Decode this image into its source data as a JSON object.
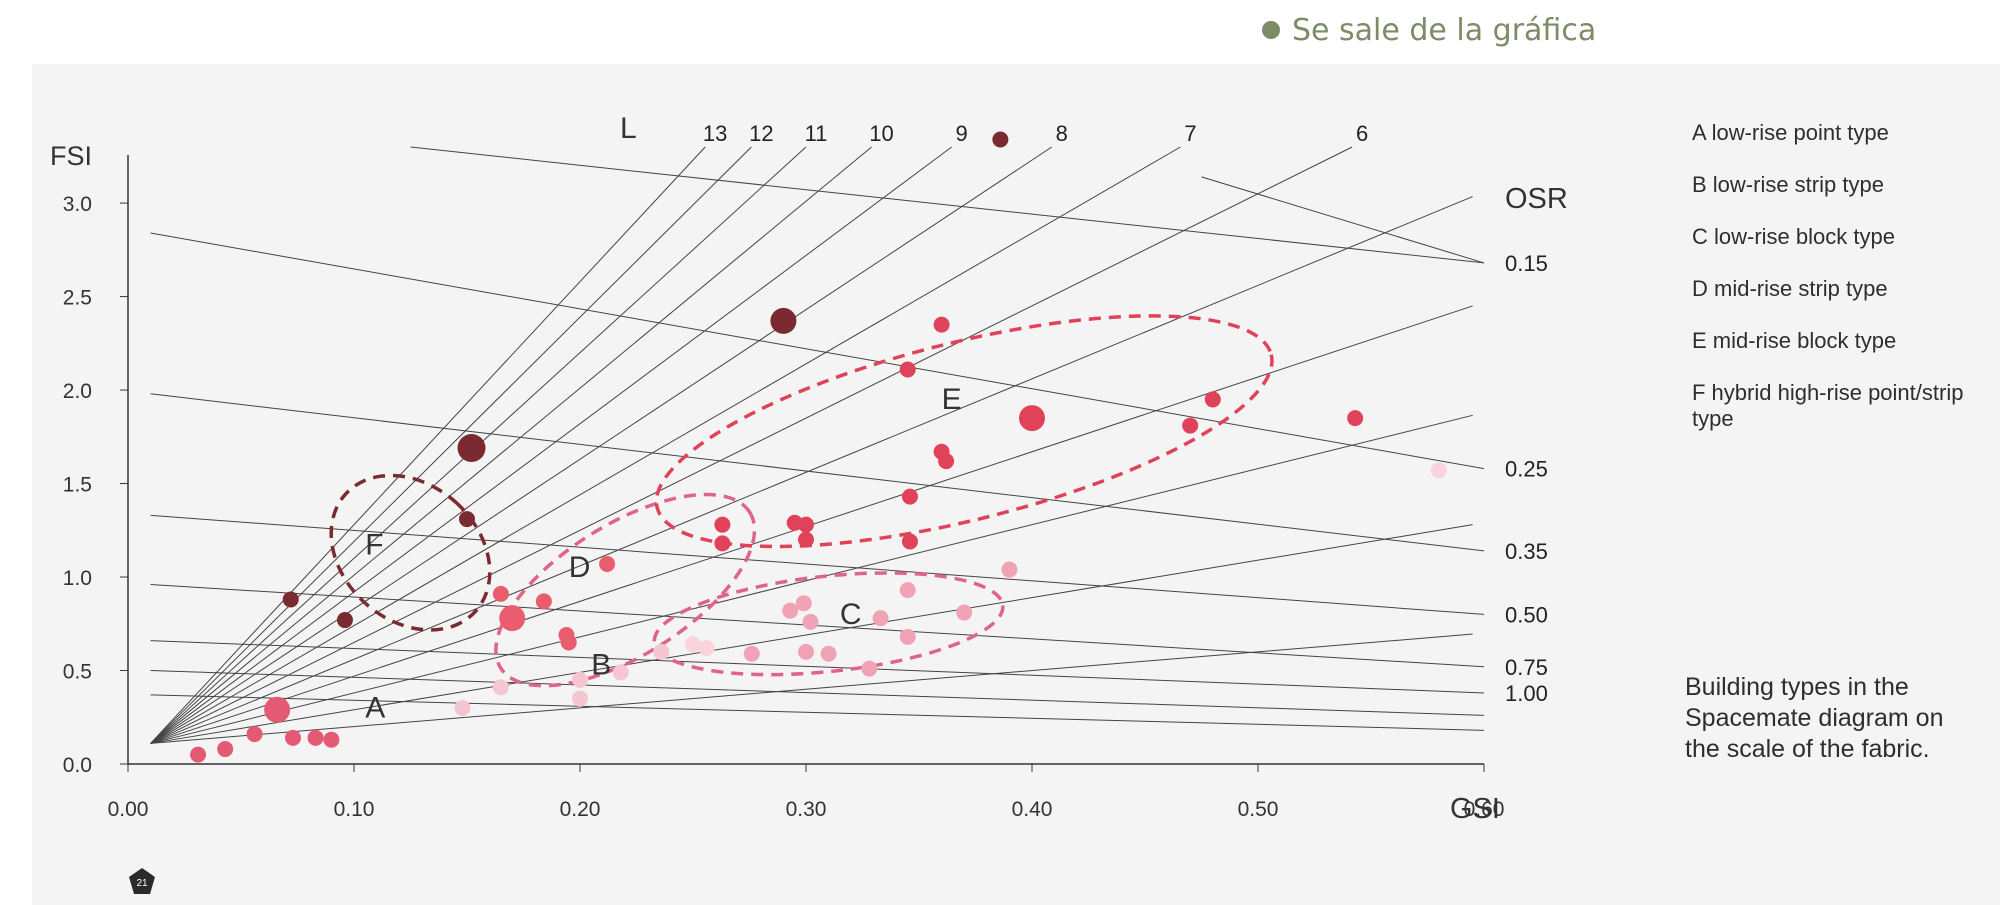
{
  "legend_note": {
    "label": "Se sale de la gráfica",
    "color": "#7d8c67"
  },
  "chart_data": {
    "type": "scatter",
    "title": "",
    "xlabel": "GSI",
    "ylabel": "FSI",
    "osr_label": "OSR",
    "l_label": "L",
    "xlim": [
      0,
      0.6
    ],
    "ylim": [
      0,
      3.3
    ],
    "x_ticks": [
      "0.00",
      "0.10",
      "0.20",
      "0.30",
      "0.40",
      "0.50",
      "0.60"
    ],
    "y_ticks": [
      "0.0",
      "0.5",
      "1.0",
      "1.5",
      "2.0",
      "2.5",
      "3.0"
    ],
    "x_tick_values": [
      0,
      0.1,
      0.2,
      0.3,
      0.4,
      0.5,
      0.6
    ],
    "y_tick_values": [
      0,
      0.5,
      1.0,
      1.5,
      2.0,
      2.5,
      3.0
    ],
    "layer_lines": [
      {
        "label": "13",
        "value": 13
      },
      {
        "label": "12",
        "value": 12
      },
      {
        "label": "11",
        "value": 11
      },
      {
        "label": "10",
        "value": 10
      },
      {
        "label": "9",
        "value": 9
      },
      {
        "label": "8",
        "value": 8
      },
      {
        "label": "7",
        "value": 7
      },
      {
        "label": "6",
        "value": 6
      },
      {
        "label": "",
        "value": 5
      },
      {
        "label": "",
        "value": 4
      },
      {
        "label": "",
        "value": 3
      },
      {
        "label": "",
        "value": 2
      },
      {
        "label": "",
        "value": 1
      }
    ],
    "osr_lines": [
      {
        "label": "0.15",
        "value": 0.15
      },
      {
        "label": "0.25",
        "value": 0.25
      },
      {
        "label": "0.35",
        "value": 0.35
      },
      {
        "label": "0.50",
        "value": 0.5
      },
      {
        "label": "0.75",
        "value": 0.75
      },
      {
        "label": "1.00",
        "value": 1.0
      },
      {
        "label": "",
        "value": 1.25
      },
      {
        "label": "",
        "value": 1.5
      }
    ],
    "clusters": [
      {
        "label": "A",
        "cx": 0.1,
        "cy": 0.18,
        "label_x": 0.105,
        "label_y": 0.25
      },
      {
        "label": "B",
        "cx": 0.2,
        "cy": 0.45,
        "label_x": 0.205,
        "label_y": 0.48
      },
      {
        "label": "C",
        "cx": 0.31,
        "cy": 0.75,
        "rx": 0.155,
        "ry": 0.51,
        "label_x": 0.315,
        "label_y": 0.75
      },
      {
        "label": "D",
        "cx": 0.22,
        "cy": 0.93,
        "rx": 0.13,
        "ry": 0.7,
        "label_x": 0.195,
        "label_y": 1.0
      },
      {
        "label": "E",
        "cx": 0.37,
        "cy": 1.78,
        "rx": 0.28,
        "ry": 0.95,
        "label_x": 0.36,
        "label_y": 1.9
      },
      {
        "label": "F",
        "cx": 0.125,
        "cy": 1.13,
        "rx": 0.06,
        "ry": 0.78,
        "label_x": 0.105,
        "label_y": 1.12
      }
    ],
    "series": [
      {
        "type": "F",
        "color": "#7b2b30",
        "points": [
          [
            0.072,
            0.88,
            8
          ],
          [
            0.096,
            0.77,
            8
          ],
          [
            0.15,
            1.31,
            8
          ],
          [
            0.152,
            1.69,
            14
          ],
          [
            0.29,
            2.37,
            13
          ],
          [
            0.386,
            3.34,
            8
          ]
        ]
      },
      {
        "type": "E",
        "color": "#e0425a",
        "points": [
          [
            0.345,
            2.11,
            8
          ],
          [
            0.36,
            2.35,
            8
          ],
          [
            0.4,
            1.85,
            13
          ],
          [
            0.36,
            1.67,
            8
          ],
          [
            0.362,
            1.62,
            8
          ],
          [
            0.346,
            1.43,
            8
          ],
          [
            0.346,
            1.19,
            8
          ],
          [
            0.47,
            1.81,
            8
          ],
          [
            0.48,
            1.95,
            8
          ],
          [
            0.543,
            1.85,
            8
          ],
          [
            0.263,
            1.28,
            8
          ],
          [
            0.263,
            1.18,
            8
          ],
          [
            0.295,
            1.29,
            8
          ],
          [
            0.3,
            1.28,
            8
          ],
          [
            0.3,
            1.2,
            8
          ]
        ]
      },
      {
        "type": "D",
        "color": "#e95d6f",
        "points": [
          [
            0.165,
            0.91,
            8
          ],
          [
            0.17,
            0.78,
            13
          ],
          [
            0.184,
            0.87,
            8
          ],
          [
            0.194,
            0.69,
            8
          ],
          [
            0.195,
            0.65,
            8
          ],
          [
            0.212,
            1.07,
            8
          ]
        ]
      },
      {
        "type": "C",
        "color": "#f0a3b4",
        "points": [
          [
            0.293,
            0.82,
            8
          ],
          [
            0.299,
            0.86,
            8
          ],
          [
            0.302,
            0.76,
            8
          ],
          [
            0.3,
            0.6,
            8
          ],
          [
            0.31,
            0.59,
            8
          ],
          [
            0.333,
            0.78,
            8
          ],
          [
            0.328,
            0.51,
            8
          ],
          [
            0.345,
            0.93,
            8
          ],
          [
            0.345,
            0.68,
            8
          ],
          [
            0.37,
            0.81,
            8
          ],
          [
            0.39,
            1.04,
            8
          ],
          [
            0.276,
            0.59,
            8
          ]
        ]
      },
      {
        "type": "B",
        "color": "#f5c6d0",
        "points": [
          [
            0.2,
            0.35,
            8
          ],
          [
            0.2,
            0.45,
            8
          ],
          [
            0.218,
            0.49,
            8
          ],
          [
            0.236,
            0.6,
            8
          ],
          [
            0.165,
            0.41,
            8
          ],
          [
            0.148,
            0.3,
            8
          ]
        ]
      },
      {
        "type": "A",
        "color": "#e45a74",
        "points": [
          [
            0.066,
            0.29,
            13
          ],
          [
            0.056,
            0.16,
            8
          ],
          [
            0.073,
            0.14,
            8
          ],
          [
            0.083,
            0.14,
            8
          ],
          [
            0.09,
            0.13,
            8
          ],
          [
            0.043,
            0.08,
            8
          ],
          [
            0.031,
            0.05,
            8
          ]
        ]
      },
      {
        "type": "",
        "color": "#fbd3dc",
        "points": [
          [
            0.58,
            1.57,
            8
          ],
          [
            0.25,
            0.64,
            8
          ],
          [
            0.256,
            0.62,
            8
          ]
        ]
      }
    ],
    "building_types": [
      {
        "key": "A",
        "label": "A  low-rise point type"
      },
      {
        "key": "B",
        "label": "B  low-rise strip type"
      },
      {
        "key": "C",
        "label": "C  low-rise block type"
      },
      {
        "key": "D",
        "label": "D  mid-rise strip type"
      },
      {
        "key": "E",
        "label": "E  mid-rise block type"
      },
      {
        "key": "F",
        "label": "F  hybrid high-rise point/strip type"
      }
    ],
    "caption": "Building types in the Spacemate diagram on the scale of the fabric.",
    "badge_text": "21"
  }
}
